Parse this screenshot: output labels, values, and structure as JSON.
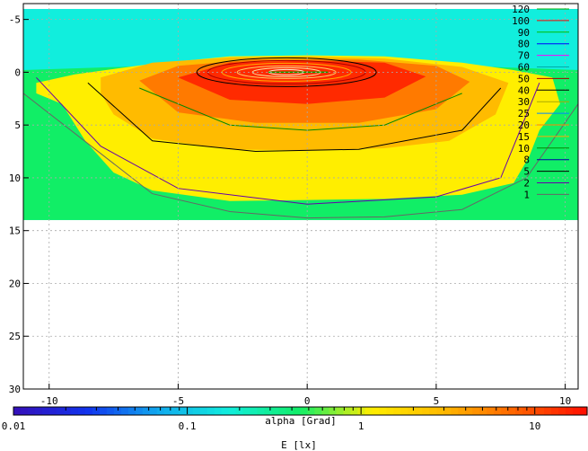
{
  "chart_data": {
    "type": "heatmap",
    "title": "",
    "xlabel": "alpha [Grad]",
    "colorbar_label": "E [lx]",
    "xlim": [
      -11,
      10.5
    ],
    "ylim": [
      -6.5,
      30
    ],
    "y_inverted": true,
    "grid": true,
    "x_ticks": [
      -10,
      -5,
      0,
      5,
      10
    ],
    "x_tick_labels": [
      "-10",
      "-5",
      "0",
      "5",
      "10"
    ],
    "y_ticks": [
      -5,
      0,
      5,
      10,
      15,
      20,
      25,
      30
    ],
    "y_tick_labels": [
      "-5",
      "0",
      "5",
      "10",
      "15",
      "20",
      "25",
      "30"
    ],
    "data_extent": {
      "y_top": -6,
      "y_bottom": 14
    },
    "colorbar": {
      "scale": "log",
      "range": [
        0.01,
        20
      ],
      "ticks": [
        0.01,
        0.1,
        1,
        10
      ],
      "tick_labels": [
        "0.01",
        "0.1",
        "1",
        "10"
      ],
      "colors": [
        "#3311bb",
        "#1133ee",
        "#11aaee",
        "#11eedd",
        "#11ee66",
        "#ffee00",
        "#ffbb00",
        "#ff6600",
        "#ff1100"
      ]
    },
    "contour_levels": [
      "120",
      "100",
      "90",
      "80",
      "70",
      "60",
      "50",
      "40",
      "30",
      "25",
      "20",
      "15",
      "10",
      "8",
      "5",
      "2",
      "1"
    ],
    "contour_colors": [
      "#00aa00",
      "#ff0000",
      "#00bb00",
      "#0000ff",
      "#ff00ff",
      "#00aaaa",
      "#aa0000",
      "#000000",
      "#aaaa00",
      "#0088ff",
      "#ff8800",
      "#ffaa00",
      "#008800",
      "#0000aa",
      "#000000",
      "#6600aa",
      "#666666"
    ],
    "contours": [
      {
        "level": "1",
        "x": [
          -11,
          -6,
          -3,
          0,
          3,
          6,
          8.5,
          10.5
        ],
        "y": [
          2,
          11.5,
          13.2,
          13.8,
          13.7,
          13,
          10,
          3
        ]
      },
      {
        "level": "2",
        "x": [
          -10.5,
          -8,
          -5,
          0,
          5,
          7.5,
          9
        ],
        "y": [
          0.5,
          7,
          11,
          12.5,
          11.8,
          10,
          1
        ]
      },
      {
        "level": "5",
        "x": [
          -8.5,
          -6,
          -2,
          2,
          6,
          7.5
        ],
        "y": [
          1,
          6.5,
          7.5,
          7.3,
          5.5,
          1.5
        ]
      },
      {
        "level": "10",
        "x": [
          -6.5,
          -3,
          0,
          3,
          6
        ],
        "y": [
          1.5,
          5,
          5.5,
          5,
          2
        ]
      }
    ]
  }
}
